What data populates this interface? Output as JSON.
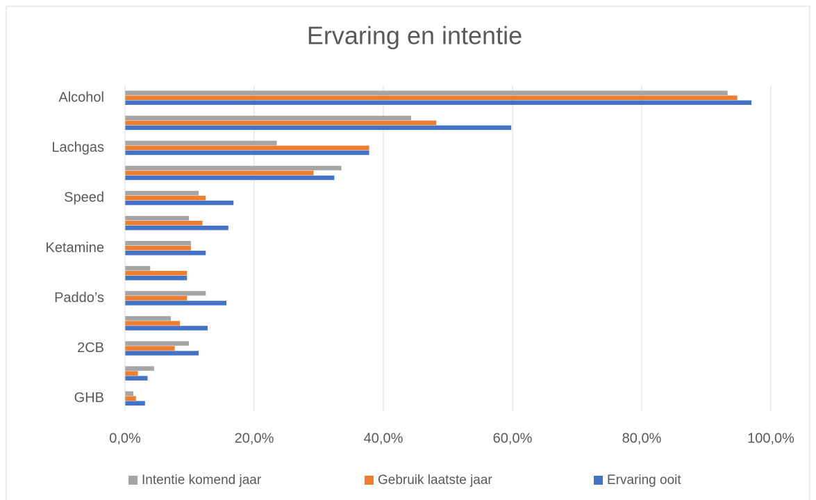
{
  "chart_data": {
    "type": "bar",
    "orientation": "horizontal",
    "title": "Ervaring en intentie",
    "categories": [
      "Alcohol",
      null,
      "Lachgas",
      null,
      "Speed",
      null,
      "Ketamine",
      null,
      "Paddo’s",
      null,
      "2CB",
      null,
      "GHB"
    ],
    "series": [
      {
        "name": "Intentie komend jaar",
        "color": "#a5a5a5",
        "values": [
          93.3,
          44.3,
          23.5,
          33.5,
          11.4,
          9.9,
          10.2,
          3.9,
          12.5,
          7.1,
          9.9,
          4.5,
          1.3
        ]
      },
      {
        "name": "Gebruik laatste jaar",
        "color": "#ed7d31",
        "values": [
          94.8,
          48.2,
          37.8,
          29.2,
          12.5,
          12.0,
          10.2,
          9.6,
          9.6,
          8.5,
          7.7,
          2.0,
          1.7
        ]
      },
      {
        "name": "Ervaring ooit",
        "color": "#4472c4",
        "values": [
          97.0,
          59.8,
          37.8,
          32.4,
          16.8,
          16.0,
          12.5,
          9.6,
          15.7,
          12.8,
          11.4,
          3.5,
          3.1
        ]
      }
    ],
    "xlim": [
      0,
      100
    ],
    "xticks": [
      {
        "value": 0,
        "label": "0,0%"
      },
      {
        "value": 20,
        "label": "20,0%"
      },
      {
        "value": 40,
        "label": "40,0%"
      },
      {
        "value": 60,
        "label": "60,0%"
      },
      {
        "value": 80,
        "label": "80,0%"
      },
      {
        "value": 100,
        "label": "100,0%"
      }
    ],
    "grid": true,
    "legend": "bottom"
  }
}
